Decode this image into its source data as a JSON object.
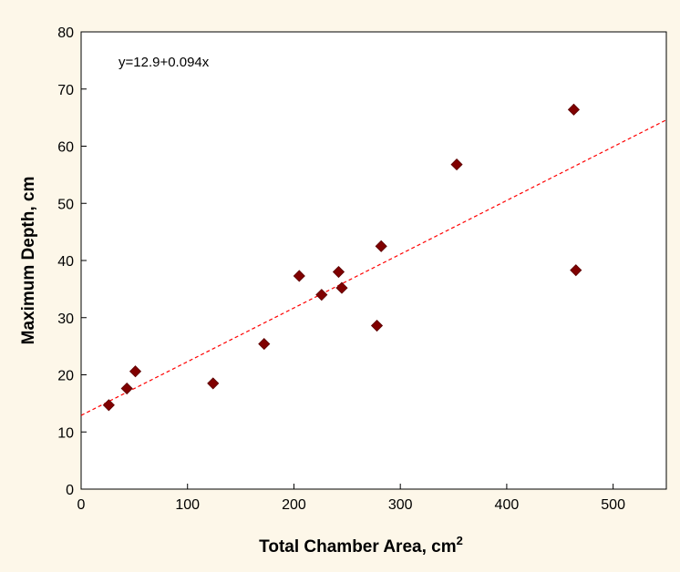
{
  "chart_data": {
    "type": "scatter",
    "annotation": "y=12.9+0.094x",
    "xlabel": "Total Chamber Area, cm",
    "xlabel_superscript": "2",
    "ylabel": "Maximum Depth, cm",
    "xlim": [
      0,
      550
    ],
    "ylim": [
      0,
      80
    ],
    "x_ticks": [
      "0",
      "100",
      "200",
      "300",
      "400",
      "500"
    ],
    "y_ticks": [
      "0",
      "10",
      "20",
      "30",
      "40",
      "50",
      "60",
      "70",
      "80"
    ],
    "grid": false,
    "legend": "none",
    "marker_color": "#800000",
    "fit_line": {
      "intercept": 12.9,
      "slope": 0.094,
      "color": "#ff0000",
      "style": "dashed"
    },
    "points": [
      {
        "x": 26,
        "y": 14.7
      },
      {
        "x": 43,
        "y": 17.6
      },
      {
        "x": 51,
        "y": 20.6
      },
      {
        "x": 124,
        "y": 18.5
      },
      {
        "x": 172,
        "y": 25.4
      },
      {
        "x": 205,
        "y": 37.3
      },
      {
        "x": 226,
        "y": 34.0
      },
      {
        "x": 242,
        "y": 38.0
      },
      {
        "x": 245,
        "y": 35.2
      },
      {
        "x": 278,
        "y": 28.6
      },
      {
        "x": 282,
        "y": 42.5
      },
      {
        "x": 353,
        "y": 56.8
      },
      {
        "x": 463,
        "y": 66.4
      },
      {
        "x": 465,
        "y": 38.3
      }
    ]
  }
}
